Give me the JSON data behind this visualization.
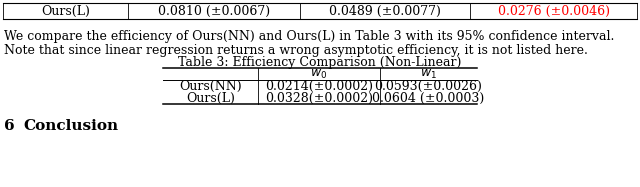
{
  "top_row_label": "Ours(L)",
  "top_row_values": [
    "0.0810 (±0.0067)",
    "0.0489 (±0.0077)",
    "0.0276 (±0.0046)"
  ],
  "top_row_colors": [
    "black",
    "black",
    "red"
  ],
  "para_line1": "We compare the efficiency of Ours(NN) and Ours(L) in Table 3 with its 95% confidence interval.",
  "para_line2": "Note that since linear regression returns a wrong asymptotic efficiency, it is not listed here.",
  "table_title": "Table 3: Efficiency Comparison (Non-Linear)",
  "col_headers": [
    "$w_0$",
    "$w_1$"
  ],
  "row_labels": [
    "Ours(NN)",
    "Ours(L)"
  ],
  "table_data": [
    [
      "0.0214(±0.0002)",
      "0.0593(±0.0026)"
    ],
    [
      "0.0328(±0.0002)",
      "0.0604 (±0.0003)"
    ]
  ],
  "section_label": "6",
  "section_text": "Conclusion",
  "bg_color": "white"
}
